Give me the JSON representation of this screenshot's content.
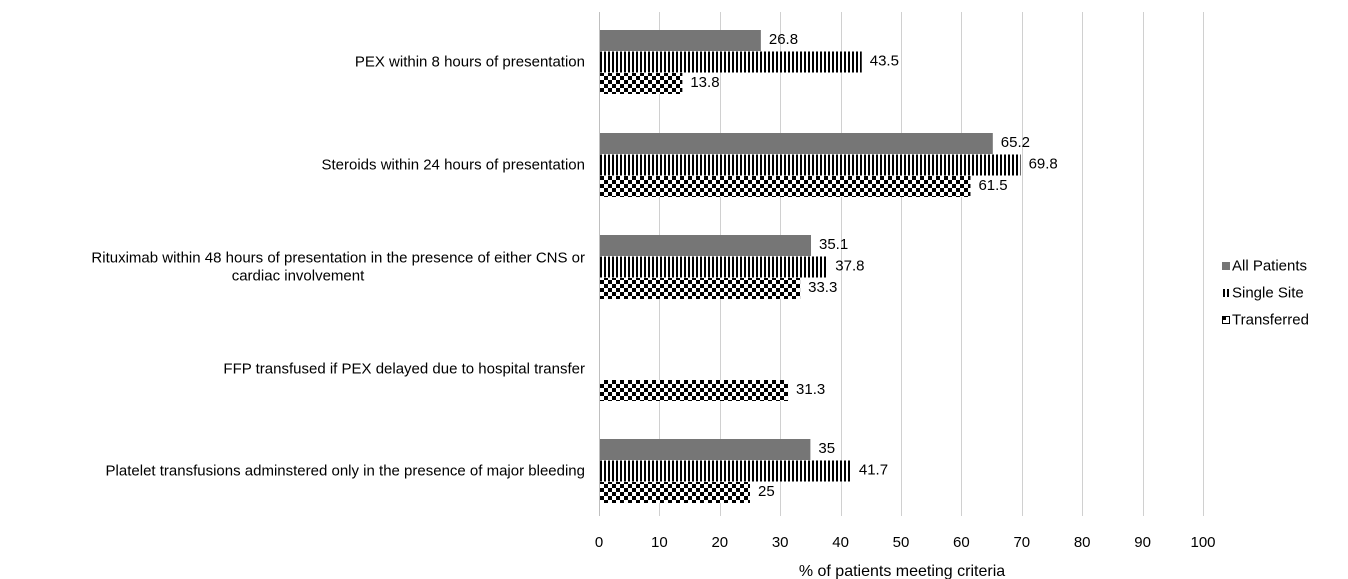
{
  "chart_data": {
    "type": "bar",
    "orientation": "horizontal",
    "categories": [
      "PEX within 8 hours of presentation",
      "Steroids within 24 hours of presentation",
      "Rituximab within 48 hours of presentation in the presence of either CNS or cardiac involvement",
      "FFP transfused if PEX delayed due to hospital transfer",
      "Platelet transfusions adminstered only in the presence of major bleeding"
    ],
    "category_lines": [
      [
        "PEX within 8 hours of presentation"
      ],
      [
        "Steroids within 24 hours of presentation"
      ],
      [
        "Rituximab within 48 hours of presentation in the presence of either CNS or",
        "cardiac involvement"
      ],
      [
        "FFP transfused if PEX delayed due to hospital transfer"
      ],
      [
        "Platelet transfusions adminstered only in the presence of major bleeding"
      ]
    ],
    "series": [
      {
        "name": "All Patients",
        "values": [
          26.8,
          65.2,
          35.1,
          null,
          35
        ],
        "labels": [
          "26.8",
          "65.2",
          "35.1",
          "",
          "35"
        ],
        "color": "#767676",
        "pattern": "solid"
      },
      {
        "name": "Single Site",
        "values": [
          43.5,
          69.8,
          37.8,
          null,
          41.7
        ],
        "labels": [
          "43.5",
          "69.8",
          "37.8",
          "",
          "41.7"
        ],
        "color": "#000000",
        "pattern": "vertical-stripes"
      },
      {
        "name": "Transferred",
        "values": [
          13.8,
          61.5,
          33.3,
          31.3,
          25
        ],
        "labels": [
          "13.8",
          "61.5",
          "33.3",
          "31.3",
          "25"
        ],
        "color": "#000000",
        "pattern": "checkerboard"
      }
    ],
    "xlabel": "% of patients meeting criteria",
    "xlim": [
      0,
      100
    ],
    "xticks": [
      0,
      10,
      20,
      30,
      40,
      50,
      60,
      70,
      80,
      90,
      100
    ],
    "grid": "vertical",
    "legend_position": "right"
  }
}
